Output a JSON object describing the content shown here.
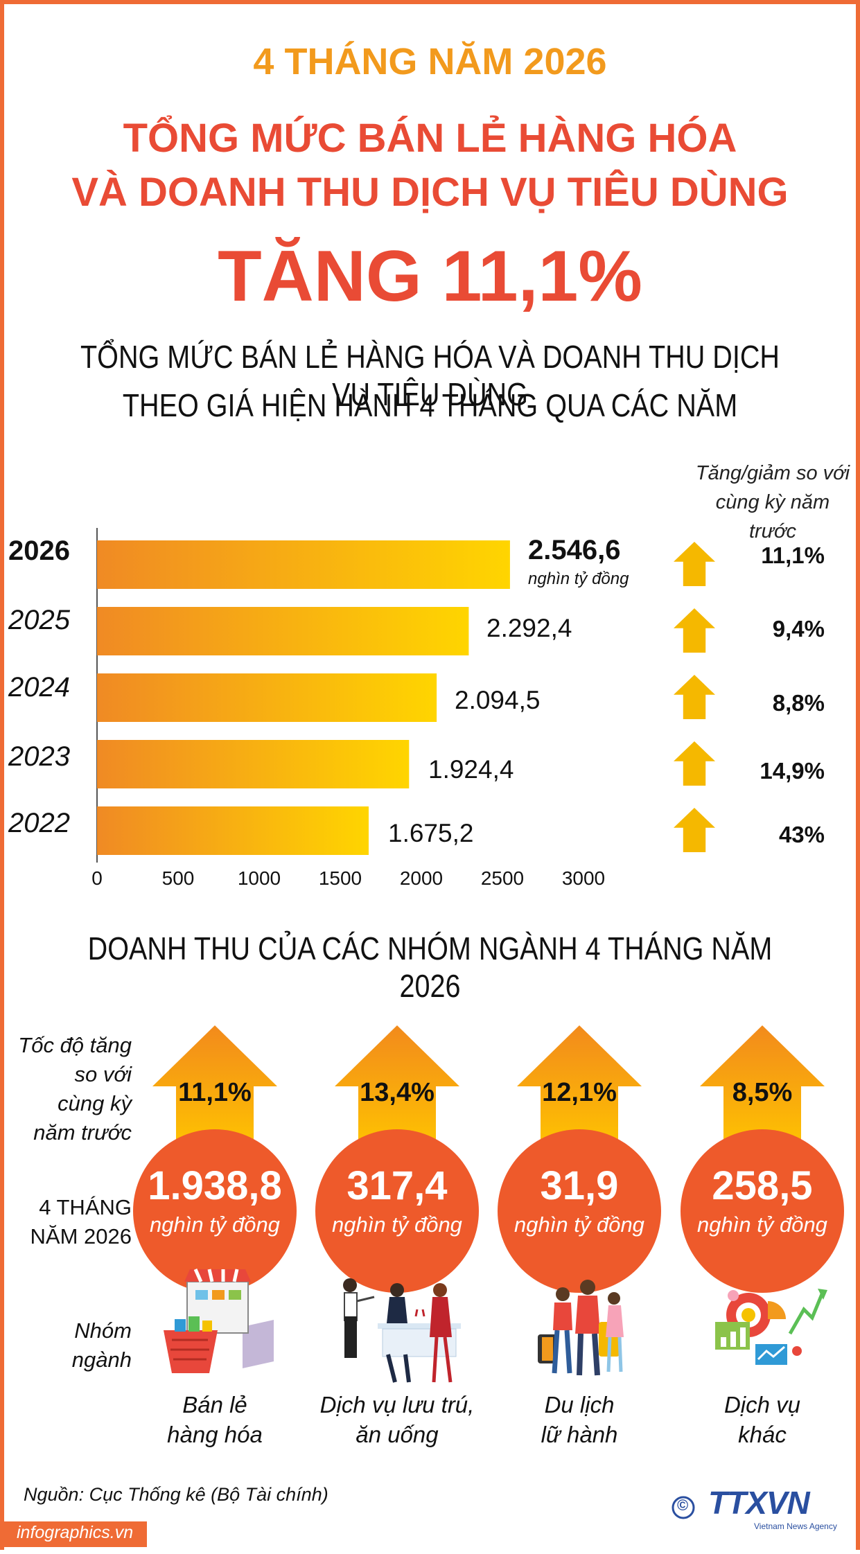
{
  "header": {
    "period": "4 THÁNG NĂM 2026",
    "title_line1": "TỔNG MỨC BÁN LẺ HÀNG HÓA",
    "title_line2": "VÀ DOANH THU DỊCH VỤ TIÊU DÙNG",
    "headline": "TĂNG 11,1%"
  },
  "chart_section": {
    "title_line1": "TỔNG MỨC BÁN LẺ HÀNG HÓA VÀ DOANH THU DỊCH VỤ TIÊU DÙNG",
    "title_line2": "THEO GIÁ HIỆN HÀNH 4 THÁNG QUA CÁC NĂM",
    "rate_header_line1": "Tăng/giảm so với",
    "rate_header_line2": "cùng kỳ năm trước",
    "unit_note": "nghìn tỷ đồng",
    "year_labels": [
      "2026",
      "2025",
      "2024",
      "2023",
      "2022"
    ],
    "value_labels": [
      "2.546,6",
      "2.292,4",
      "2.094,5",
      "1.924,4",
      "1.675,2"
    ],
    "rate_labels": [
      "11,1%",
      "9,4%",
      "8,8%",
      "14,9%",
      "43%"
    ],
    "tick_labels": [
      "0",
      "500",
      "1000",
      "1500",
      "2000",
      "2500",
      "3000"
    ]
  },
  "chart_data": {
    "type": "bar",
    "orientation": "horizontal",
    "categories": [
      "2026",
      "2025",
      "2024",
      "2023",
      "2022"
    ],
    "values": [
      2546.6,
      2292.4,
      2094.5,
      1924.4,
      1675.2
    ],
    "growth_percent": [
      11.1,
      9.4,
      8.8,
      14.9,
      43
    ],
    "xlim": [
      0,
      3000
    ],
    "xticks": [
      0,
      500,
      1000,
      1500,
      2000,
      2500,
      3000
    ],
    "grid": false,
    "bar_gradient": [
      "#f08a24",
      "#ffd500"
    ],
    "arrow_color": "#f5b800"
  },
  "groups_section": {
    "title": "DOANH THU CỦA CÁC NHÓM NGÀNH 4 THÁNG NĂM 2026",
    "label_rate": [
      "Tốc độ tăng",
      "so với",
      "cùng kỳ",
      "năm trước"
    ],
    "label_period": [
      "4 THÁNG",
      "NĂM 2026"
    ],
    "label_group": [
      "Nhóm",
      "ngành"
    ],
    "unit": "nghìn tỷ đồng",
    "groups": [
      {
        "rate": "11,1%",
        "value": "1.938,8",
        "name1": "Bán lẻ",
        "name2": "hàng hóa",
        "icon": "shop-basket-icon"
      },
      {
        "rate": "13,4%",
        "value": "317,4",
        "name1": "Dịch vụ lưu trú,",
        "name2": "ăn uống",
        "icon": "dining-icon"
      },
      {
        "rate": "12,1%",
        "value": "31,9",
        "name1": "Du lịch",
        "name2": "lữ hành",
        "icon": "travelers-icon"
      },
      {
        "rate": "8,5%",
        "value": "258,5",
        "name1": "Dịch vụ",
        "name2": "khác",
        "icon": "analytics-icon"
      }
    ],
    "circle_color": "#ee5a2b"
  },
  "footer": {
    "source": "Nguồn: Cục Thống kê (Bộ Tài chính)",
    "site": "infographics.vn",
    "copyright": "©",
    "logo": "TTXVN",
    "logo_sub": "Vietnam News Agency"
  }
}
